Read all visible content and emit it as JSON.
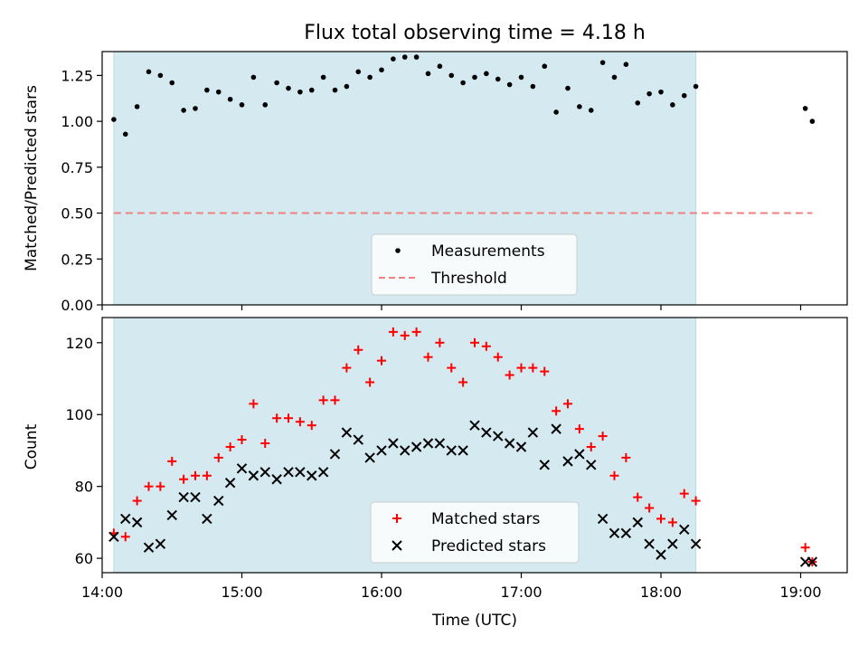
{
  "chart_data": [
    {
      "type": "scatter",
      "title": "Flux total observing time = 4.18 h",
      "ylabel": "Matched/Predicted stars",
      "xlabel": "",
      "ylim": [
        0.0,
        1.38
      ],
      "xlim": [
        "14:00",
        "19:20"
      ],
      "yticks": [
        "0.00",
        "0.25",
        "0.50",
        "0.75",
        "1.00",
        "1.25"
      ],
      "shaded_span": [
        "14:05",
        "18:15"
      ],
      "shaded_color": "#d4eaf0",
      "threshold": 0.5,
      "threshold_color": "#f08080",
      "legend_placement": "lower center",
      "series": [
        {
          "name": "Measurements",
          "color": "#000000",
          "marker": "dot",
          "points": [
            [
              "14:05",
              1.01
            ],
            [
              "14:10",
              0.93
            ],
            [
              "14:15",
              1.08
            ],
            [
              "14:20",
              1.27
            ],
            [
              "14:25",
              1.25
            ],
            [
              "14:30",
              1.21
            ],
            [
              "14:35",
              1.06
            ],
            [
              "14:40",
              1.07
            ],
            [
              "14:45",
              1.17
            ],
            [
              "14:50",
              1.16
            ],
            [
              "14:55",
              1.12
            ],
            [
              "15:00",
              1.09
            ],
            [
              "15:05",
              1.24
            ],
            [
              "15:10",
              1.09
            ],
            [
              "15:15",
              1.21
            ],
            [
              "15:20",
              1.18
            ],
            [
              "15:25",
              1.16
            ],
            [
              "15:30",
              1.17
            ],
            [
              "15:35",
              1.24
            ],
            [
              "15:40",
              1.17
            ],
            [
              "15:45",
              1.19
            ],
            [
              "15:50",
              1.27
            ],
            [
              "15:55",
              1.24
            ],
            [
              "16:00",
              1.28
            ],
            [
              "16:05",
              1.34
            ],
            [
              "16:10",
              1.35
            ],
            [
              "16:15",
              1.35
            ],
            [
              "16:20",
              1.26
            ],
            [
              "16:25",
              1.3
            ],
            [
              "16:30",
              1.25
            ],
            [
              "16:35",
              1.21
            ],
            [
              "16:40",
              1.24
            ],
            [
              "16:45",
              1.26
            ],
            [
              "16:50",
              1.23
            ],
            [
              "16:55",
              1.2
            ],
            [
              "17:00",
              1.24
            ],
            [
              "17:05",
              1.19
            ],
            [
              "17:10",
              1.3
            ],
            [
              "17:15",
              1.05
            ],
            [
              "17:20",
              1.18
            ],
            [
              "17:25",
              1.08
            ],
            [
              "17:30",
              1.06
            ],
            [
              "17:35",
              1.32
            ],
            [
              "17:40",
              1.24
            ],
            [
              "17:45",
              1.31
            ],
            [
              "17:50",
              1.1
            ],
            [
              "17:55",
              1.15
            ],
            [
              "18:00",
              1.16
            ],
            [
              "18:05",
              1.09
            ],
            [
              "18:10",
              1.14
            ],
            [
              "18:15",
              1.19
            ],
            [
              "19:02",
              1.07
            ],
            [
              "19:05",
              1.0
            ]
          ]
        },
        {
          "name": "Threshold",
          "color": "#f08080",
          "style": "dashed"
        }
      ]
    },
    {
      "type": "scatter",
      "title": "",
      "ylabel": "Count",
      "xlabel": "Time (UTC)",
      "ylim": [
        56,
        127
      ],
      "xlim": [
        "14:00",
        "19:20"
      ],
      "yticks": [
        "60",
        "80",
        "100",
        "120"
      ],
      "xticks": [
        "14:00",
        "15:00",
        "16:00",
        "17:00",
        "18:00",
        "19:00"
      ],
      "shaded_span": [
        "14:05",
        "18:15"
      ],
      "legend_placement": "lower center",
      "series": [
        {
          "name": "Matched stars",
          "color": "#ff0000",
          "marker": "plus",
          "points": [
            [
              "14:05",
              67
            ],
            [
              "14:10",
              66
            ],
            [
              "14:15",
              76
            ],
            [
              "14:20",
              80
            ],
            [
              "14:25",
              80
            ],
            [
              "14:30",
              87
            ],
            [
              "14:35",
              82
            ],
            [
              "14:40",
              83
            ],
            [
              "14:45",
              83
            ],
            [
              "14:50",
              88
            ],
            [
              "14:55",
              91
            ],
            [
              "15:00",
              93
            ],
            [
              "15:05",
              103
            ],
            [
              "15:10",
              92
            ],
            [
              "15:15",
              99
            ],
            [
              "15:20",
              99
            ],
            [
              "15:25",
              98
            ],
            [
              "15:30",
              97
            ],
            [
              "15:35",
              104
            ],
            [
              "15:40",
              104
            ],
            [
              "15:45",
              113
            ],
            [
              "15:50",
              118
            ],
            [
              "15:55",
              109
            ],
            [
              "16:00",
              115
            ],
            [
              "16:05",
              123
            ],
            [
              "16:10",
              122
            ],
            [
              "16:15",
              123
            ],
            [
              "16:20",
              116
            ],
            [
              "16:25",
              120
            ],
            [
              "16:30",
              113
            ],
            [
              "16:35",
              109
            ],
            [
              "16:40",
              120
            ],
            [
              "16:45",
              119
            ],
            [
              "16:50",
              116
            ],
            [
              "16:55",
              111
            ],
            [
              "17:00",
              113
            ],
            [
              "17:05",
              113
            ],
            [
              "17:10",
              112
            ],
            [
              "17:15",
              101
            ],
            [
              "17:20",
              103
            ],
            [
              "17:25",
              96
            ],
            [
              "17:30",
              91
            ],
            [
              "17:35",
              94
            ],
            [
              "17:40",
              83
            ],
            [
              "17:45",
              88
            ],
            [
              "17:50",
              77
            ],
            [
              "17:55",
              74
            ],
            [
              "18:00",
              71
            ],
            [
              "18:05",
              70
            ],
            [
              "18:10",
              78
            ],
            [
              "18:15",
              76
            ],
            [
              "19:02",
              63
            ],
            [
              "19:05",
              59
            ]
          ]
        },
        {
          "name": "Predicted stars",
          "color": "#000000",
          "marker": "x",
          "points": [
            [
              "14:05",
              66
            ],
            [
              "14:10",
              71
            ],
            [
              "14:15",
              70
            ],
            [
              "14:20",
              63
            ],
            [
              "14:25",
              64
            ],
            [
              "14:30",
              72
            ],
            [
              "14:35",
              77
            ],
            [
              "14:40",
              77
            ],
            [
              "14:45",
              71
            ],
            [
              "14:50",
              76
            ],
            [
              "14:55",
              81
            ],
            [
              "15:00",
              85
            ],
            [
              "15:05",
              83
            ],
            [
              "15:10",
              84
            ],
            [
              "15:15",
              82
            ],
            [
              "15:20",
              84
            ],
            [
              "15:25",
              84
            ],
            [
              "15:30",
              83
            ],
            [
              "15:35",
              84
            ],
            [
              "15:40",
              89
            ],
            [
              "15:45",
              95
            ],
            [
              "15:50",
              93
            ],
            [
              "15:55",
              88
            ],
            [
              "16:00",
              90
            ],
            [
              "16:05",
              92
            ],
            [
              "16:10",
              90
            ],
            [
              "16:15",
              91
            ],
            [
              "16:20",
              92
            ],
            [
              "16:25",
              92
            ],
            [
              "16:30",
              90
            ],
            [
              "16:35",
              90
            ],
            [
              "16:40",
              97
            ],
            [
              "16:45",
              95
            ],
            [
              "16:50",
              94
            ],
            [
              "16:55",
              92
            ],
            [
              "17:00",
              91
            ],
            [
              "17:05",
              95
            ],
            [
              "17:10",
              86
            ],
            [
              "17:15",
              96
            ],
            [
              "17:20",
              87
            ],
            [
              "17:25",
              89
            ],
            [
              "17:30",
              86
            ],
            [
              "17:35",
              71
            ],
            [
              "17:40",
              67
            ],
            [
              "17:45",
              67
            ],
            [
              "17:50",
              70
            ],
            [
              "17:55",
              64
            ],
            [
              "18:00",
              61
            ],
            [
              "18:05",
              64
            ],
            [
              "18:10",
              68
            ],
            [
              "18:15",
              64
            ],
            [
              "19:02",
              59
            ],
            [
              "19:05",
              59
            ]
          ]
        }
      ]
    }
  ]
}
